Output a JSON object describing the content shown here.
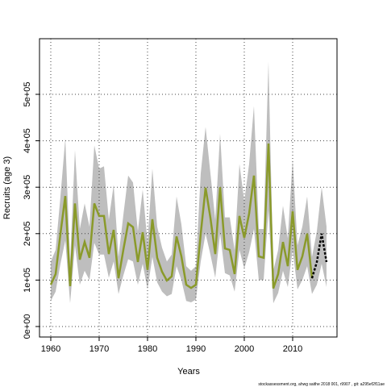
{
  "chart_data": {
    "type": "line",
    "x_label": "Years",
    "y_label": "Recruits (age 3)",
    "footer": "stockassessment.org, ahwg saithe 2018 001, r9907 , git: a295ef2f11ae",
    "x": [
      1960,
      1961,
      1962,
      1963,
      1964,
      1965,
      1966,
      1967,
      1968,
      1969,
      1970,
      1971,
      1972,
      1973,
      1974,
      1975,
      1976,
      1977,
      1978,
      1979,
      1980,
      1981,
      1982,
      1983,
      1984,
      1985,
      1986,
      1987,
      1988,
      1989,
      1990,
      1991,
      1992,
      1993,
      1994,
      1995,
      1996,
      1997,
      1998,
      1999,
      2000,
      2001,
      2002,
      2003,
      2004,
      2005,
      2006,
      2007,
      2008,
      2009,
      2010,
      2011,
      2012,
      2013,
      2014,
      2015,
      2016,
      2017
    ],
    "series": [
      {
        "color": "#8a9a2a",
        "dashed": false,
        "values": [
          90000,
          113000,
          200000,
          281000,
          87000,
          265000,
          144000,
          182000,
          148000,
          265000,
          238000,
          238000,
          156000,
          208000,
          104000,
          165000,
          222000,
          214000,
          139000,
          203000,
          122000,
          231000,
          148000,
          118000,
          99000,
          108000,
          194000,
          151000,
          90000,
          83000,
          90000,
          200000,
          299000,
          234000,
          156000,
          300000,
          168000,
          165000,
          113000,
          238000,
          191000,
          243000,
          325000,
          151000,
          148000,
          394000,
          82000,
          113000,
          182000,
          130000,
          248000,
          122000,
          151000,
          200000,
          104000,
          null,
          null,
          null
        ]
      },
      {
        "color": "#000000",
        "dashed": true,
        "values": [
          null,
          null,
          null,
          null,
          null,
          null,
          null,
          null,
          null,
          null,
          null,
          null,
          null,
          null,
          null,
          null,
          null,
          null,
          null,
          null,
          null,
          null,
          null,
          null,
          null,
          null,
          null,
          null,
          null,
          null,
          null,
          null,
          null,
          null,
          null,
          null,
          null,
          null,
          null,
          null,
          null,
          null,
          null,
          null,
          null,
          null,
          null,
          null,
          null,
          null,
          null,
          null,
          null,
          null,
          104000,
          139000,
          200000,
          139000
        ]
      }
    ],
    "band": {
      "color": "#bebebe",
      "upper": [
        140000,
        165000,
        280000,
        405000,
        140000,
        380000,
        210000,
        265000,
        215000,
        390000,
        340000,
        345000,
        230000,
        305000,
        150000,
        240000,
        325000,
        310000,
        205000,
        295000,
        180000,
        340000,
        215000,
        170000,
        140000,
        155000,
        280000,
        220000,
        130000,
        120000,
        130000,
        330000,
        430000,
        330000,
        230000,
        415000,
        235000,
        235000,
        165000,
        350000,
        270000,
        350000,
        475000,
        210000,
        210000,
        570000,
        120000,
        165000,
        260000,
        190000,
        360000,
        175000,
        215000,
        280000,
        150000,
        205000,
        300000,
        215000
      ],
      "lower": [
        55000,
        75000,
        135000,
        185000,
        50000,
        175000,
        90000,
        120000,
        100000,
        180000,
        155000,
        155000,
        105000,
        140000,
        70000,
        110000,
        145000,
        140000,
        90000,
        135000,
        80000,
        150000,
        95000,
        75000,
        65000,
        70000,
        130000,
        100000,
        55000,
        52000,
        58000,
        140000,
        200000,
        155000,
        105000,
        200000,
        115000,
        110000,
        75000,
        165000,
        125000,
        160000,
        210000,
        100000,
        100000,
        250000,
        50000,
        72000,
        120000,
        85000,
        165000,
        80000,
        100000,
        130000,
        70000,
        90000,
        135000,
        85000
      ]
    },
    "xlim": [
      1957.67,
      2019.17
    ],
    "xticks": [
      1960,
      1970,
      1980,
      1990,
      2000,
      2010
    ],
    "ylim": [
      -22600,
      619800
    ],
    "yticks": [
      {
        "value": 0,
        "label": "0e+00"
      },
      {
        "value": 100000,
        "label": "1e+05"
      },
      {
        "value": 200000,
        "label": "2e+05"
      },
      {
        "value": 300000,
        "label": "3e+05"
      },
      {
        "value": 400000,
        "label": "4e+05"
      },
      {
        "value": 500000,
        "label": "5e+05"
      }
    ],
    "grid": true
  }
}
